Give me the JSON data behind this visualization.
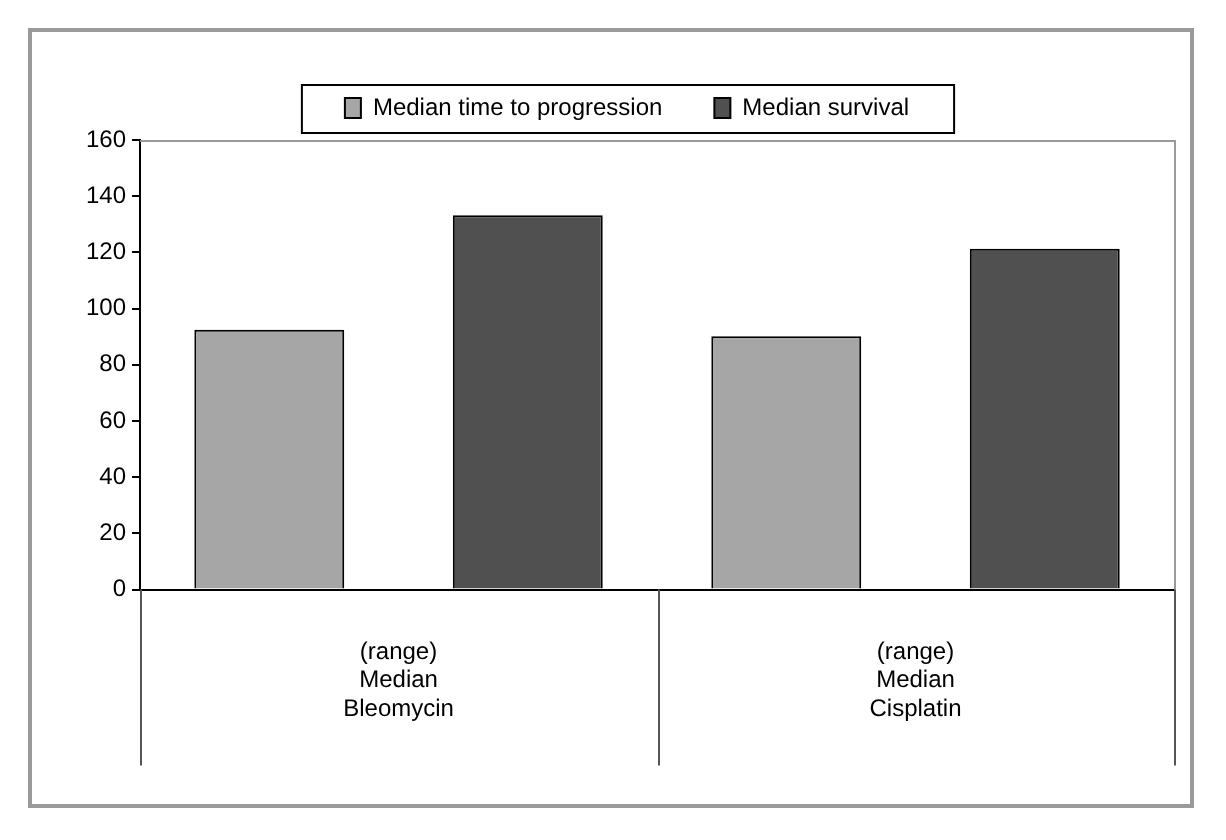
{
  "chart_data": {
    "type": "bar",
    "categories": [
      "(range)\nMedian\nBleomycin",
      "(range)\nMedian\nCisplatin"
    ],
    "series": [
      {
        "name": "Median time to progression",
        "color": "#a6a6a6",
        "values": [
          92.5,
          90.2
        ]
      },
      {
        "name": "Median survival",
        "color": "#505050",
        "values": [
          133.2,
          121.3
        ]
      }
    ],
    "ylim": [
      0,
      160
    ],
    "yticks": [
      0,
      20,
      40,
      60,
      80,
      100,
      120,
      140,
      160
    ],
    "grid": false,
    "legend": "top"
  }
}
